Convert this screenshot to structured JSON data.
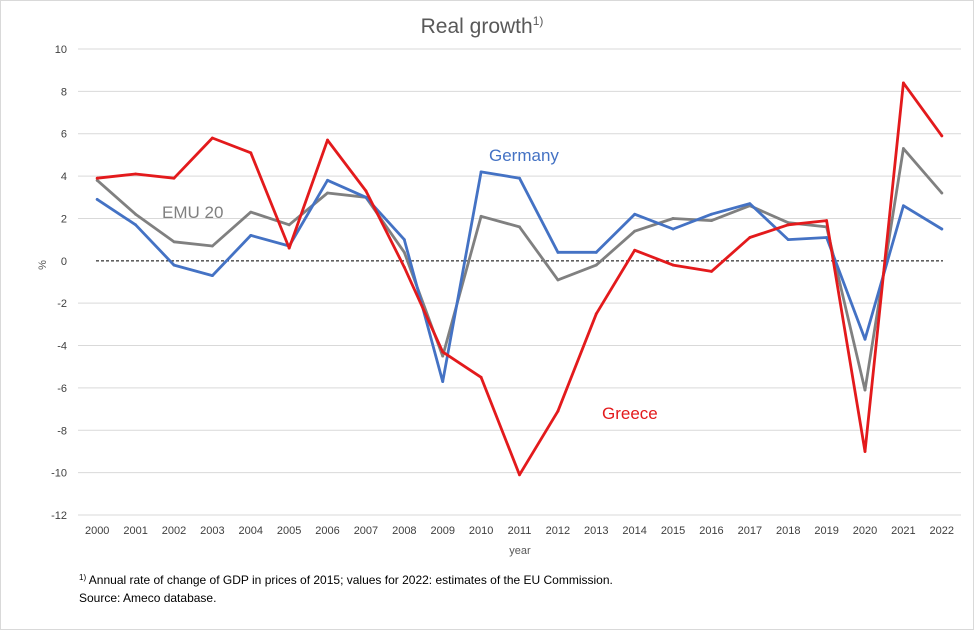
{
  "chart_data": {
    "type": "line",
    "title": "Real growth",
    "title_superscript": "1)",
    "xlabel": "year",
    "ylabel": "%",
    "ylim": [
      -12,
      10
    ],
    "y_ticks": [
      "-12",
      "-10",
      "-8",
      "-6",
      "-4",
      "-2",
      "0",
      "2",
      "4",
      "6",
      "8",
      "10"
    ],
    "categories": [
      "2000",
      "2001",
      "2002",
      "2003",
      "2004",
      "2005",
      "2006",
      "2007",
      "2008",
      "2009",
      "2010",
      "2011",
      "2012",
      "2013",
      "2014",
      "2015",
      "2016",
      "2017",
      "2018",
      "2019",
      "2020",
      "2021",
      "2022"
    ],
    "grid": true,
    "zero_line": "dashed",
    "series": [
      {
        "name": "EMU 20",
        "color": "#808080",
        "values": [
          3.8,
          2.2,
          0.9,
          0.7,
          2.3,
          1.7,
          3.2,
          3.0,
          0.4,
          -4.5,
          2.1,
          1.6,
          -0.9,
          -0.2,
          1.4,
          2.0,
          1.9,
          2.6,
          1.8,
          1.6,
          -6.1,
          5.3,
          3.2
        ]
      },
      {
        "name": "Germany",
        "color": "#4472c4",
        "values": [
          2.9,
          1.7,
          -0.2,
          -0.7,
          1.2,
          0.7,
          3.8,
          3.0,
          1.0,
          -5.7,
          4.2,
          3.9,
          0.4,
          0.4,
          2.2,
          1.5,
          2.2,
          2.7,
          1.0,
          1.1,
          -3.7,
          2.6,
          1.5
        ]
      },
      {
        "name": "Greece",
        "color": "#e31a1c",
        "values": [
          3.9,
          4.1,
          3.9,
          5.8,
          5.1,
          0.6,
          5.7,
          3.3,
          -0.3,
          -4.3,
          -5.5,
          -10.1,
          -7.1,
          -2.5,
          0.5,
          -0.2,
          -0.5,
          1.1,
          1.7,
          1.9,
          -9.0,
          8.4,
          5.9
        ]
      }
    ]
  },
  "footnote": {
    "marker": "1)",
    "line1": "Annual rate of change of GDP in prices of 2015;  values for 2022:  estimates of the EU Commission.",
    "line2": "Source: Ameco database."
  }
}
